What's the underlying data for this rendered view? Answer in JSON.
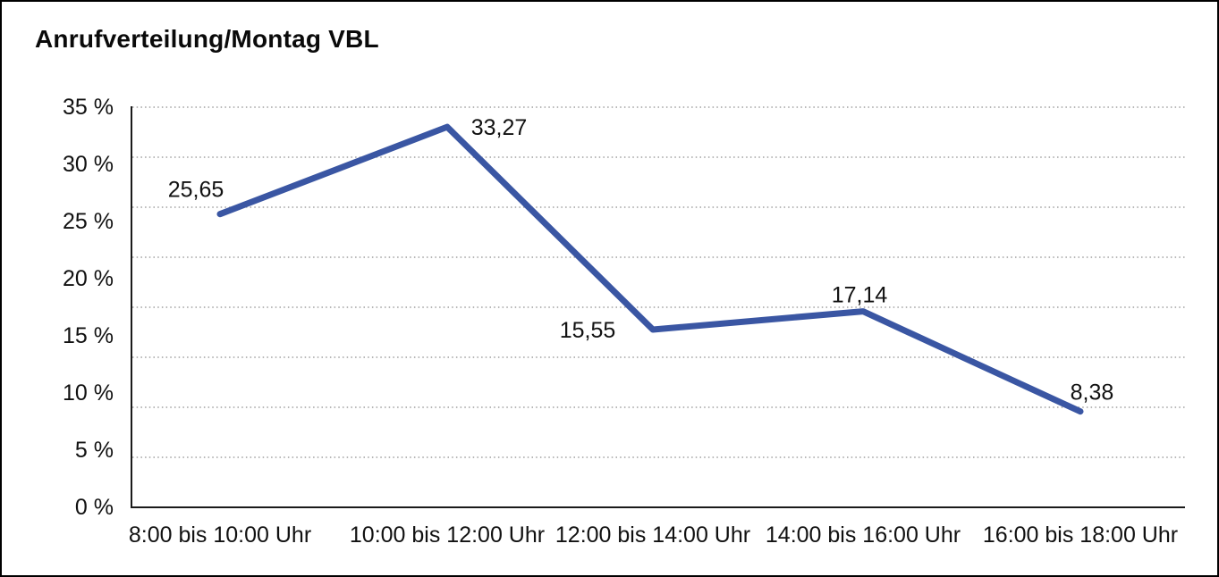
{
  "title": "Anrufverteilung/Montag VBL",
  "chart_data": {
    "type": "line",
    "title": "Anrufverteilung/Montag VBL",
    "categories": [
      "8:00 bis 10:00 Uhr",
      "10:00 bis 12:00 Uhr",
      "12:00 bis 14:00 Uhr",
      "14:00 bis 16:00 Uhr",
      "16:00 bis 18:00 Uhr"
    ],
    "values": [
      25.65,
      33.27,
      15.55,
      17.14,
      8.38
    ],
    "value_labels": [
      "25,65",
      "33,27",
      "15,55",
      "17,14",
      "8,38"
    ],
    "ytick_labels": [
      "35 %",
      "30 %",
      "25 %",
      "20 %",
      "15 %",
      "10 %",
      "5 %",
      "0 %"
    ],
    "ylim": [
      0,
      35
    ],
    "xlabel": "",
    "ylabel": "",
    "grid": "horizontal-dotted",
    "legend_position": "none",
    "line_color": "#3A56A3",
    "axis_color": "#1a1a1a",
    "gridline_color": "#8c8c8c",
    "text_color": "#111111"
  }
}
